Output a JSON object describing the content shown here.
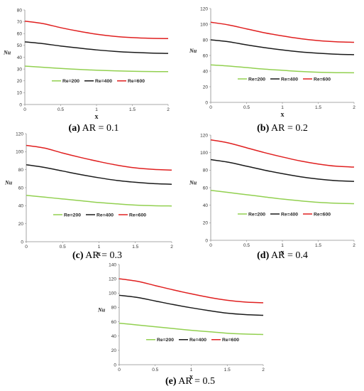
{
  "figure": {
    "legend_labels": [
      "Re=200",
      "Re=400",
      "Re=600"
    ],
    "series_colors": [
      "#92d050",
      "#1a1a1a",
      "#e02020"
    ]
  },
  "chart_data": [
    {
      "type": "line",
      "caption_letter": "(a)",
      "caption_rest": " AR = 0.1",
      "xlabel": "x",
      "ylabel": "Nu",
      "xlim": [
        0,
        2
      ],
      "ylim": [
        0,
        80
      ],
      "xticks": [
        "0",
        "0.5",
        "1",
        "1.5",
        "2"
      ],
      "yticks": [
        "0",
        "10",
        "20",
        "30",
        "40",
        "50",
        "60",
        "70",
        "80"
      ],
      "x": [
        0,
        0.25,
        0.5,
        0.75,
        1,
        1.25,
        1.5,
        1.75,
        2
      ],
      "series": [
        {
          "name": "Re=200",
          "values": [
            32.5,
            31.5,
            30.5,
            29.7,
            29.0,
            28.5,
            28.1,
            27.9,
            27.8
          ]
        },
        {
          "name": "Re=400",
          "values": [
            53.0,
            51.5,
            49.5,
            47.8,
            46.2,
            45.0,
            44.1,
            43.5,
            43.2
          ]
        },
        {
          "name": "Re=600",
          "values": [
            70.5,
            68.5,
            65.0,
            62.0,
            59.5,
            57.7,
            56.6,
            56.0,
            55.8
          ]
        }
      ],
      "legend_position": "middle"
    },
    {
      "type": "line",
      "caption_letter": "(b)",
      "caption_rest": " AR = 0.2",
      "xlabel": "x",
      "ylabel": "Nu",
      "xlim": [
        0,
        2
      ],
      "ylim": [
        0,
        120
      ],
      "xticks": [
        "0",
        "0.5",
        "1",
        "1.5",
        "2"
      ],
      "yticks": [
        "0",
        "20",
        "40",
        "60",
        "80",
        "100",
        "120"
      ],
      "x": [
        0,
        0.25,
        0.5,
        0.75,
        1,
        1.25,
        1.5,
        1.75,
        2
      ],
      "series": [
        {
          "name": "Re=200",
          "values": [
            48.0,
            46.5,
            44.5,
            42.5,
            41.0,
            39.5,
            38.5,
            38.0,
            37.8
          ]
        },
        {
          "name": "Re=400",
          "values": [
            80.0,
            77.5,
            73.5,
            70.0,
            67.0,
            64.5,
            62.8,
            61.6,
            61.0
          ]
        },
        {
          "name": "Re=600",
          "values": [
            102.5,
            99.0,
            94.0,
            89.0,
            85.0,
            81.5,
            79.0,
            77.5,
            76.8
          ]
        }
      ],
      "legend_position": "middle"
    },
    {
      "type": "line",
      "caption_letter": "(c)",
      "caption_rest": " AR = 0.3",
      "xlabel": "x",
      "ylabel": "Nu",
      "xlim": [
        0,
        2
      ],
      "ylim": [
        0,
        120
      ],
      "xticks": [
        "0",
        "0.5",
        "1",
        "1.5",
        "2"
      ],
      "yticks": [
        "0",
        "20",
        "40",
        "60",
        "80",
        "100",
        "120"
      ],
      "x": [
        0,
        0.25,
        0.5,
        0.75,
        1,
        1.25,
        1.5,
        1.75,
        2
      ],
      "series": [
        {
          "name": "Re=200",
          "values": [
            51.5,
            49.5,
            47.5,
            45.5,
            43.5,
            42.0,
            40.7,
            40.0,
            39.7
          ]
        },
        {
          "name": "Re=400",
          "values": [
            85.5,
            82.5,
            78.5,
            74.5,
            71.0,
            68.0,
            66.0,
            64.5,
            63.8
          ]
        },
        {
          "name": "Re=600",
          "values": [
            107.0,
            104.0,
            98.5,
            93.5,
            89.0,
            85.0,
            82.0,
            80.3,
            79.5
          ]
        }
      ],
      "legend_position": "middle"
    },
    {
      "type": "line",
      "caption_letter": "(d)",
      "caption_rest": " AR = 0.4",
      "xlabel": "x",
      "ylabel": "Nu",
      "xlim": [
        0,
        2
      ],
      "ylim": [
        0,
        120
      ],
      "xticks": [
        "0",
        "0.5",
        "1",
        "1.5",
        "2"
      ],
      "yticks": [
        "0",
        "20",
        "40",
        "60",
        "80",
        "100",
        "120"
      ],
      "x": [
        0,
        0.25,
        0.5,
        0.75,
        1,
        1.25,
        1.5,
        1.75,
        2
      ],
      "series": [
        {
          "name": "Re=200",
          "values": [
            57.0,
            54.5,
            52.0,
            49.5,
            47.0,
            45.0,
            43.3,
            42.3,
            41.8
          ]
        },
        {
          "name": "Re=400",
          "values": [
            92.0,
            89.0,
            84.5,
            80.0,
            76.0,
            72.5,
            69.8,
            68.0,
            67.2
          ]
        },
        {
          "name": "Re=600",
          "values": [
            114.5,
            111.0,
            105.5,
            100.0,
            95.0,
            90.5,
            87.0,
            84.5,
            83.5
          ]
        }
      ],
      "legend_position": "middle"
    },
    {
      "type": "line",
      "caption_letter": "(e)",
      "caption_rest": " AR = 0.5",
      "xlabel": "x",
      "ylabel": "Nu",
      "xlim": [
        0,
        2
      ],
      "ylim": [
        0,
        140
      ],
      "xticks": [
        "0",
        "0.5",
        "1",
        "1.5",
        "2"
      ],
      "yticks": [
        "0",
        "20",
        "40",
        "60",
        "80",
        "100",
        "120",
        "140"
      ],
      "x": [
        0,
        0.25,
        0.5,
        0.75,
        1,
        1.25,
        1.5,
        1.75,
        2
      ],
      "series": [
        {
          "name": "Re=200",
          "values": [
            58.0,
            55.5,
            53.0,
            50.5,
            48.0,
            46.0,
            44.0,
            42.8,
            42.2
          ]
        },
        {
          "name": "Re=400",
          "values": [
            97.0,
            94.0,
            89.0,
            84.0,
            79.5,
            75.5,
            72.0,
            70.0,
            69.0
          ]
        },
        {
          "name": "Re=600",
          "values": [
            120.0,
            116.5,
            110.5,
            104.5,
            99.0,
            94.0,
            90.0,
            87.5,
            86.5
          ]
        }
      ],
      "legend_position": "middle"
    }
  ]
}
